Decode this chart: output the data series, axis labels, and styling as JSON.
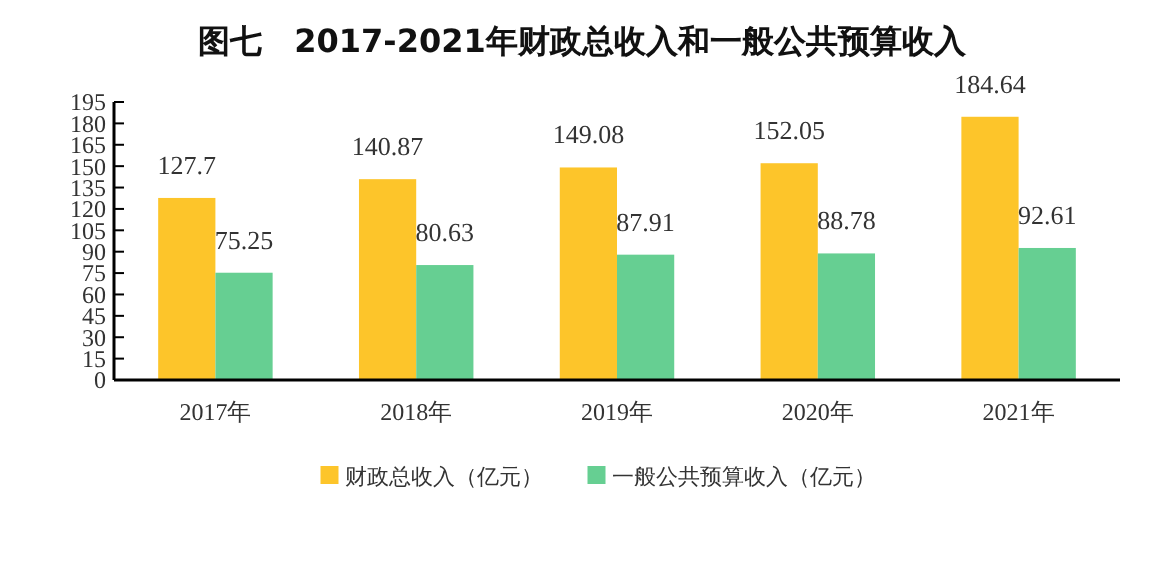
{
  "chart_data": {
    "type": "bar",
    "title": "图七　2017-2021年财政总收入和一般公共预算收入",
    "categories": [
      "2017年",
      "2018年",
      "2019年",
      "2020年",
      "2021年"
    ],
    "series": [
      {
        "name": "财政总收入（亿元）",
        "color": "#fdc52a",
        "values": [
          127.7,
          140.87,
          149.08,
          152.05,
          184.64
        ]
      },
      {
        "name": "一般公共预算收入（亿元）",
        "color": "#66cf92",
        "values": [
          75.25,
          80.63,
          87.91,
          88.78,
          92.61
        ]
      }
    ],
    "ylim": [
      0,
      195
    ],
    "yticks": [
      0,
      15,
      30,
      45,
      60,
      75,
      90,
      105,
      120,
      135,
      150,
      165,
      180,
      195
    ],
    "data_labels": true,
    "grid": false,
    "legend": "bottom"
  }
}
